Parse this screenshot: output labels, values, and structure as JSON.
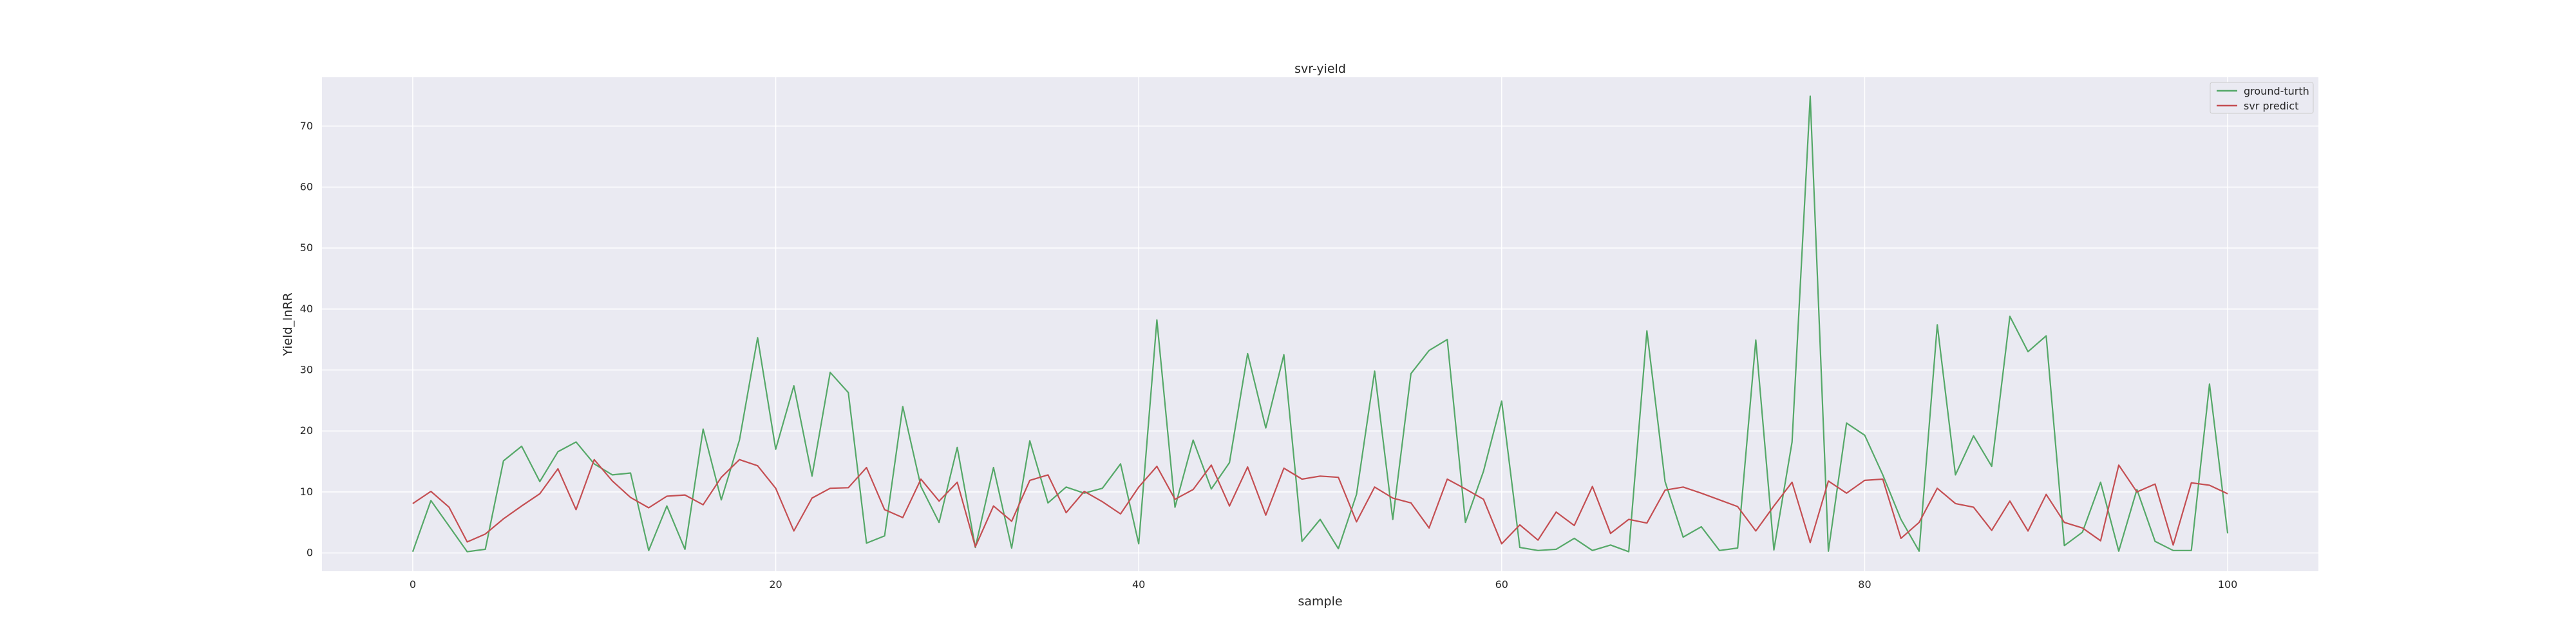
{
  "chart_data": {
    "type": "line",
    "title": "svr-yield",
    "xlabel": "sample",
    "ylabel": "Yield_lnRR",
    "xlim": [
      -5,
      105
    ],
    "ylim": [
      -3,
      78
    ],
    "xticks": [
      0,
      20,
      40,
      60,
      80,
      100
    ],
    "yticks": [
      0,
      10,
      20,
      30,
      40,
      50,
      60,
      70
    ],
    "grid": true,
    "legend_position": "top-right",
    "x": [
      0,
      1,
      2,
      3,
      4,
      5,
      6,
      7,
      8,
      9,
      10,
      11,
      12,
      13,
      14,
      15,
      16,
      17,
      18,
      19,
      20,
      21,
      22,
      23,
      24,
      25,
      26,
      27,
      28,
      29,
      30,
      31,
      32,
      33,
      34,
      35,
      36,
      37,
      38,
      39,
      40,
      41,
      42,
      43,
      44,
      45,
      46,
      47,
      48,
      49,
      50,
      51,
      52,
      53,
      54,
      55,
      56,
      57,
      58,
      59,
      60,
      61,
      62,
      63,
      64,
      65,
      66,
      67,
      68,
      69,
      70,
      71,
      72,
      73,
      74,
      75,
      76,
      77,
      78,
      79,
      80,
      81,
      82,
      83,
      84,
      85,
      86,
      87,
      88,
      89,
      90,
      91,
      92,
      93,
      94,
      95,
      96,
      97,
      98,
      99,
      100
    ],
    "series": [
      {
        "name": "ground-turth",
        "color": "#55a868",
        "values": [
          0.2,
          8.6,
          4.4,
          0.2,
          0.6,
          15.1,
          17.5,
          11.7,
          16.6,
          18.2,
          14.6,
          12.8,
          13.1,
          0.4,
          7.7,
          0.6,
          20.3,
          8.7,
          18.5,
          35.3,
          17.0,
          27.4,
          12.6,
          29.6,
          26.3,
          1.6,
          2.8,
          24.0,
          10.9,
          5.0,
          17.3,
          0.9,
          14.0,
          0.8,
          18.4,
          8.2,
          10.8,
          9.8,
          10.6,
          14.6,
          1.5,
          38.2,
          7.5,
          18.5,
          10.5,
          14.8,
          32.7,
          20.5,
          32.5,
          1.9,
          5.5,
          0.7,
          9.6,
          29.8,
          5.5,
          29.4,
          33.2,
          35.0,
          5.0,
          13.4,
          24.9,
          0.9,
          0.4,
          0.6,
          2.4,
          0.4,
          1.3,
          0.2,
          36.4,
          11.7,
          2.6,
          4.3,
          0.4,
          0.8,
          34.9,
          0.5,
          18.2,
          74.9,
          0.3,
          21.3,
          19.3,
          12.8,
          5.5,
          0.3,
          37.4,
          12.8,
          19.2,
          14.2,
          38.8,
          33.0,
          35.6,
          1.2,
          3.4,
          11.6,
          0.3,
          10.4,
          1.9,
          0.4,
          0.4,
          27.7,
          3.2
        ]
      },
      {
        "name": "svr predict",
        "color": "#c44e52",
        "values": [
          8.1,
          10.1,
          7.5,
          1.8,
          3.1,
          5.6,
          7.7,
          9.7,
          13.8,
          7.1,
          15.3,
          11.8,
          9.1,
          7.4,
          9.3,
          9.5,
          7.9,
          12.4,
          15.3,
          14.3,
          10.6,
          3.6,
          9.0,
          10.6,
          10.7,
          14.0,
          7.1,
          5.8,
          12.1,
          8.5,
          11.6,
          1.0,
          7.7,
          5.2,
          11.9,
          12.8,
          6.6,
          10.1,
          8.4,
          6.4,
          10.8,
          14.2,
          8.8,
          10.4,
          14.4,
          7.7,
          14.1,
          6.2,
          13.9,
          12.1,
          12.6,
          12.4,
          5.1,
          10.8,
          9.0,
          8.2,
          4.1,
          12.1,
          10.5,
          8.8,
          1.5,
          4.6,
          2.1,
          6.7,
          4.5,
          10.9,
          3.2,
          5.5,
          4.9,
          10.3,
          10.8,
          9.8,
          8.7,
          7.6,
          3.6,
          7.7,
          11.6,
          1.7,
          11.8,
          9.8,
          11.9,
          12.1,
          2.4,
          5.0,
          10.6,
          8.1,
          7.5,
          3.7,
          8.5,
          3.6,
          9.6,
          5.0,
          4.1,
          2.0,
          14.4,
          10.0,
          11.3,
          1.3,
          11.5,
          11.1,
          9.7
        ]
      }
    ]
  }
}
